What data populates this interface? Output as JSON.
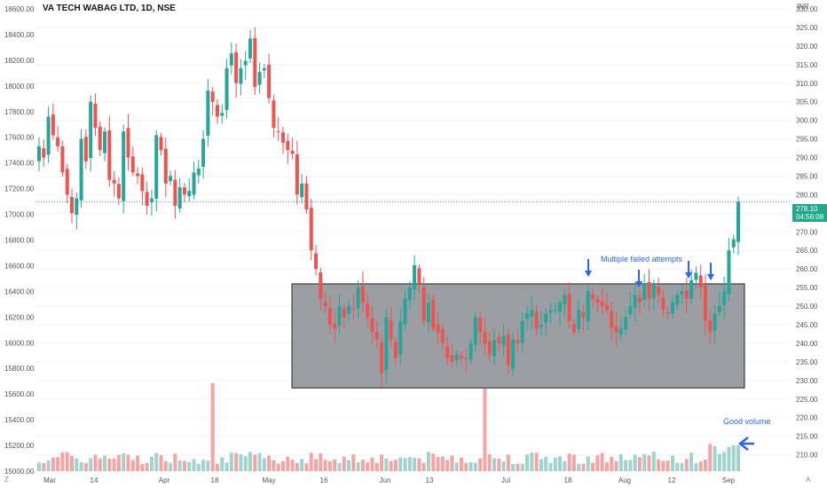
{
  "header": {
    "title": "VA TECH WABAG LTD, 1D, NSE",
    "currency": "INR"
  },
  "price_tag": {
    "price": "278.10",
    "countdown": "04:56:08",
    "color": "#20a88b"
  },
  "corners": {
    "left": "Z",
    "right": "A"
  },
  "colors": {
    "up": "#26a69a",
    "down": "#ef5350",
    "vol_up": "#9fd3cd",
    "vol_down": "#f4a4a2",
    "box_fill": "#8a8d93",
    "arrow": "#2962ff",
    "note": "#2962ff"
  },
  "chart_data": {
    "type": "candlestick",
    "title": "VA TECH WABAG LTD, 1D, NSE",
    "left_axis": {
      "ticks": [
        "18600.00",
        "18400.00",
        "18200.00",
        "18000.00",
        "17800.00",
        "17600.00",
        "17400.00",
        "17200.00",
        "17000.00",
        "16800.00",
        "16600.00",
        "16400.00",
        "16200.00",
        "16000.00",
        "15800.00",
        "15600.00",
        "15400.00",
        "15200.00",
        "15000.00"
      ],
      "range": [
        15000,
        18600
      ]
    },
    "right_axis": {
      "unit": "INR",
      "ticks": [
        "330.00",
        "325.00",
        "320.00",
        "315.00",
        "310.00",
        "305.00",
        "300.00",
        "295.00",
        "290.00",
        "285.00",
        "280.00",
        "275.00",
        "270.00",
        "265.00",
        "260.00",
        "255.00",
        "250.00",
        "245.00",
        "240.00",
        "235.00",
        "230.00",
        "225.00",
        "220.00",
        "215.00",
        "210.00"
      ],
      "range": [
        205.6,
        330
      ]
    },
    "x_ticks": [
      "Mar",
      "14",
      "Apr",
      "18",
      "May",
      "16",
      "Jun",
      "13",
      "Jul",
      "18",
      "Aug",
      "12",
      "Sep"
    ],
    "last_price": 278.1,
    "candles_close": [
      293,
      290,
      301,
      296,
      293,
      286,
      280,
      275,
      279,
      295,
      289,
      305,
      298,
      292,
      297,
      284,
      283,
      279,
      297,
      290,
      286,
      285,
      281,
      277,
      279,
      296,
      292,
      283,
      285,
      277,
      282,
      280,
      281,
      286,
      287,
      295,
      308,
      305,
      301,
      302,
      314,
      318,
      310,
      314,
      316,
      322,
      309,
      313,
      314,
      306,
      298,
      297,
      294,
      292,
      291,
      280,
      283,
      276,
      265,
      260,
      252,
      250,
      245,
      244,
      250,
      247,
      250,
      249,
      255,
      251,
      247,
      243,
      241,
      232,
      247,
      241,
      236,
      246,
      252,
      255,
      261,
      256,
      246,
      251,
      244,
      243,
      240,
      236,
      235,
      237,
      236,
      236,
      240,
      247,
      243,
      240,
      237,
      241,
      240,
      242,
      234,
      241,
      240,
      246,
      248,
      249,
      244,
      245,
      248,
      249,
      249,
      251,
      253,
      246,
      243,
      249,
      247,
      254,
      252,
      251,
      250,
      249,
      244,
      243,
      244,
      247,
      250,
      253,
      251,
      256,
      252,
      256,
      253,
      249,
      248,
      251,
      253,
      254,
      252,
      257,
      259,
      255,
      246,
      243,
      248,
      250,
      254,
      265,
      268,
      278.1
    ],
    "volume_note": "Good volume",
    "annotations": [
      "Multiple failed attempts",
      "Good volume"
    ],
    "consolidation_box": {
      "price_low": 228,
      "price_high": 256
    }
  }
}
